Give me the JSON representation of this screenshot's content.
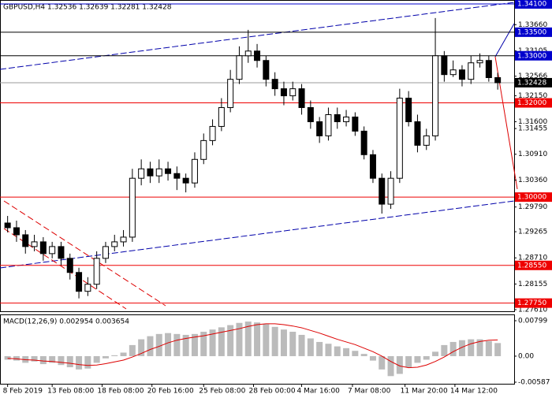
{
  "chart_data": [
    {
      "type": "candlestick",
      "title": "GBPUSD,H4  1.32536 1.32639 1.32281 1.32428",
      "open": [
        1.2945,
        1.2935,
        1.292,
        1.2895,
        1.2905,
        1.288,
        1.2895,
        1.287,
        1.284,
        1.28,
        1.2815,
        1.287,
        1.2895,
        1.2905,
        1.2915,
        1.304,
        1.306,
        1.3045,
        1.306,
        1.305,
        1.304,
        1.303,
        1.308,
        1.312,
        1.315,
        1.319,
        1.325,
        1.33,
        1.331,
        1.329,
        1.325,
        1.323,
        1.3215,
        1.323,
        1.319,
        1.316,
        1.313,
        1.3175,
        1.316,
        1.317,
        1.314,
        1.309,
        1.304,
        1.2985,
        1.304,
        1.321,
        1.316,
        1.311,
        1.313,
        1.33,
        1.326,
        1.327,
        1.325,
        1.3285,
        1.329,
        1.32536
      ],
      "high": [
        1.296,
        1.295,
        1.293,
        1.292,
        1.2915,
        1.2905,
        1.2905,
        1.288,
        1.285,
        1.283,
        1.2885,
        1.2905,
        1.292,
        1.293,
        1.306,
        1.308,
        1.3075,
        1.308,
        1.3075,
        1.3065,
        1.305,
        1.3095,
        1.3135,
        1.3165,
        1.321,
        1.327,
        1.332,
        1.3355,
        1.3325,
        1.33,
        1.3265,
        1.3245,
        1.3245,
        1.324,
        1.3205,
        1.317,
        1.319,
        1.319,
        1.3185,
        1.318,
        1.315,
        1.31,
        1.305,
        1.3055,
        1.323,
        1.3225,
        1.3175,
        1.3145,
        1.338,
        1.331,
        1.329,
        1.328,
        1.33,
        1.3305,
        1.33,
        1.32639
      ],
      "low": [
        1.2925,
        1.2905,
        1.288,
        1.2885,
        1.2865,
        1.287,
        1.2855,
        1.2825,
        1.2785,
        1.279,
        1.2805,
        1.286,
        1.2885,
        1.2895,
        1.2905,
        1.3025,
        1.303,
        1.303,
        1.3035,
        1.3015,
        1.301,
        1.302,
        1.307,
        1.311,
        1.314,
        1.318,
        1.324,
        1.3285,
        1.3275,
        1.3235,
        1.3215,
        1.3195,
        1.3205,
        1.3175,
        1.3145,
        1.3115,
        1.312,
        1.3145,
        1.315,
        1.313,
        1.308,
        1.303,
        1.2965,
        1.2975,
        1.303,
        1.315,
        1.3095,
        1.31,
        1.312,
        1.3245,
        1.3255,
        1.3235,
        1.324,
        1.3275,
        1.3245,
        1.32281
      ],
      "close": [
        1.2935,
        1.292,
        1.2895,
        1.2905,
        1.288,
        1.2895,
        1.287,
        1.284,
        1.28,
        1.2815,
        1.287,
        1.2895,
        1.2905,
        1.2915,
        1.304,
        1.306,
        1.3045,
        1.306,
        1.305,
        1.304,
        1.303,
        1.308,
        1.312,
        1.315,
        1.319,
        1.325,
        1.33,
        1.331,
        1.329,
        1.325,
        1.323,
        1.3215,
        1.323,
        1.319,
        1.316,
        1.313,
        1.3175,
        1.316,
        1.317,
        1.314,
        1.309,
        1.304,
        1.2985,
        1.304,
        1.321,
        1.316,
        1.311,
        1.313,
        1.33,
        1.326,
        1.327,
        1.325,
        1.3285,
        1.329,
        1.32536,
        1.32428
      ],
      "xticks": [
        {
          "value": 0,
          "label": "8 Feb 2019"
        },
        {
          "value": 5,
          "label": "13 Feb 08:00"
        },
        {
          "value": 10.6,
          "label": "18 Feb 08:00"
        },
        {
          "value": 16.2,
          "label": "20 Feb 16:00"
        },
        {
          "value": 22,
          "label": "25 Feb 08:00"
        },
        {
          "value": 27.6,
          "label": "28 Feb 00:00"
        },
        {
          "value": 33,
          "label": "4 Mar 16:00"
        },
        {
          "value": 38.7,
          "label": "7 Mar 08:00"
        },
        {
          "value": 44.6,
          "label": "11 Mar 20:00"
        },
        {
          "value": 50.2,
          "label": "14 Mar 12:00"
        }
      ],
      "ylim": [
        1.2761,
        1.341
      ],
      "yticks": [
        {
          "value": 1.3366,
          "label": "1.33660"
        },
        {
          "value": 1.33105,
          "label": "1.33105"
        },
        {
          "value": 1.32566,
          "label": "1.32566"
        },
        {
          "value": 1.3215,
          "label": "1.32150"
        },
        {
          "value": 1.316,
          "label": "1.31600"
        },
        {
          "value": 1.31455,
          "label": "1.31455"
        },
        {
          "value": 1.3091,
          "label": "1.30910"
        },
        {
          "value": 1.3036,
          "label": "1.30360"
        },
        {
          "value": 1.2979,
          "label": "1.29790"
        },
        {
          "value": 1.29265,
          "label": "1.29265"
        },
        {
          "value": 1.2871,
          "label": "1.28710"
        },
        {
          "value": 1.28155,
          "label": "1.28155"
        },
        {
          "value": 1.2761,
          "label": "1.27610"
        }
      ],
      "levels": [
        {
          "value": 1.341,
          "label": "1.34100",
          "color": "#0000cc",
          "line_color": "#0000cc"
        },
        {
          "value": 1.335,
          "label": "1.33500",
          "color": "#0000cc",
          "line_color": "#000000"
        },
        {
          "value": 1.33,
          "label": "1.33000",
          "color": "#0000cc",
          "line_color": "#000000"
        },
        {
          "value": 1.32428,
          "label": "1.32428",
          "color": "#000000",
          "line_color": "#999999"
        },
        {
          "value": 1.32,
          "label": "1.32000",
          "color": "#ee0000",
          "line_color": "#ee0000"
        },
        {
          "value": 1.3,
          "label": "1.30000",
          "color": "#ee0000",
          "line_color": "#ee0000"
        },
        {
          "value": 1.2855,
          "label": "1.28550",
          "color": "#ee0000",
          "line_color": "#ee0000"
        },
        {
          "value": 1.2775,
          "label": "1.27750",
          "color": "#ee0000",
          "line_color": "#ee0000"
        }
      ]
    },
    {
      "type": "macd",
      "title": "MACD(12,26,9) 0.002954 0.003654",
      "histogram": {
        "color": "#bbbbbb",
        "values": [
          -0.0008,
          -0.001,
          -0.0015,
          -0.0012,
          -0.0018,
          -0.0015,
          -0.002,
          -0.0025,
          -0.003,
          -0.0028,
          -0.0015,
          -0.0005,
          0.0002,
          0.0008,
          0.0025,
          0.0038,
          0.0045,
          0.005,
          0.0052,
          0.005,
          0.0048,
          0.005,
          0.0055,
          0.006,
          0.0065,
          0.007,
          0.0075,
          0.0078,
          0.0076,
          0.0072,
          0.0066,
          0.006,
          0.0055,
          0.0048,
          0.004,
          0.0032,
          0.0028,
          0.0022,
          0.0018,
          0.0012,
          0.0005,
          -0.001,
          -0.003,
          -0.0045,
          -0.004,
          -0.0025,
          -0.0015,
          -0.0008,
          0.001,
          0.0025,
          0.0032,
          0.0036,
          0.0038,
          0.0038,
          0.0034,
          0.002954
        ]
      },
      "signal": {
        "color": "#dd0000",
        "values": [
          -0.0005,
          -0.0006,
          -0.0008,
          -0.0009,
          -0.0011,
          -0.0012,
          -0.0014,
          -0.0016,
          -0.0019,
          -0.0021,
          -0.002,
          -0.0017,
          -0.0013,
          -0.0009,
          -0.0002,
          0.0006,
          0.0015,
          0.0022,
          0.003,
          0.0036,
          0.004,
          0.0043,
          0.0046,
          0.005,
          0.0054,
          0.0058,
          0.0062,
          0.0067,
          0.0071,
          0.0073,
          0.0073,
          0.0071,
          0.0068,
          0.0064,
          0.0058,
          0.0052,
          0.0045,
          0.0038,
          0.0032,
          0.0026,
          0.0018,
          0.001,
          0.0,
          -0.0012,
          -0.0022,
          -0.0026,
          -0.0025,
          -0.002,
          -0.0012,
          -0.0002,
          0.001,
          0.002,
          0.0028,
          0.0033,
          0.0036,
          0.003654
        ]
      },
      "ylim": [
        -0.00587,
        0.00799
      ],
      "yticks": [
        {
          "value": 0.00799,
          "label": "0.00799"
        },
        {
          "value": 0,
          "label": "0.00"
        },
        {
          "value": -0.00587,
          "label": "-0.00587"
        }
      ]
    }
  ]
}
